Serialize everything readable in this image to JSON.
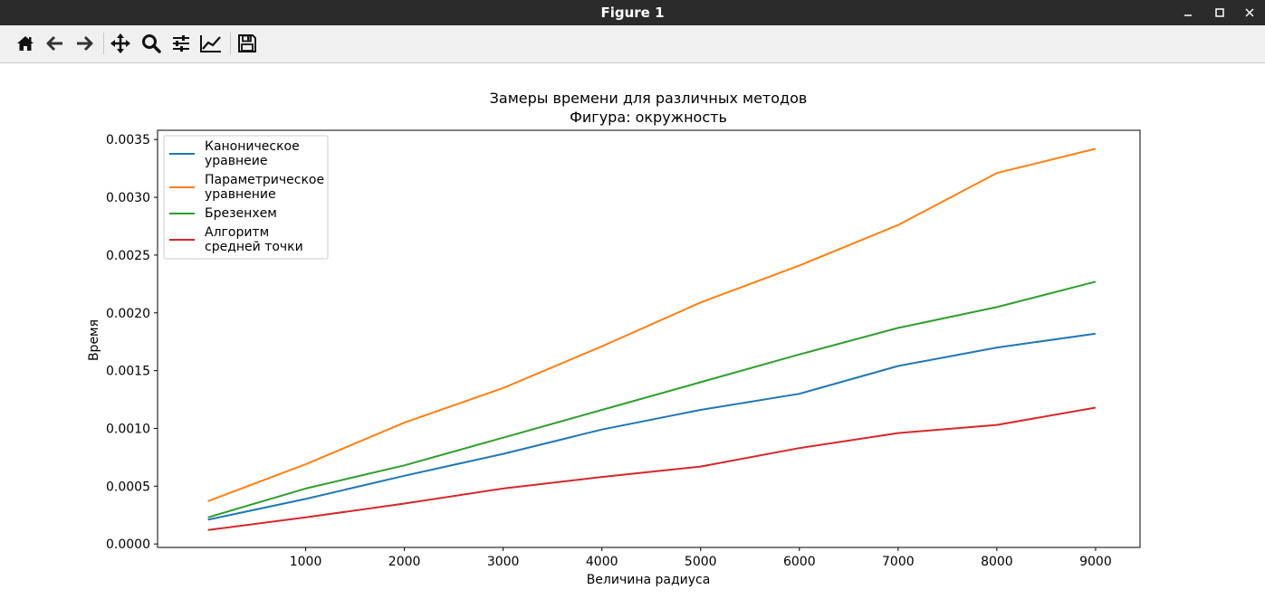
{
  "window": {
    "title": "Figure 1"
  },
  "toolbar": {
    "buttons": [
      "home-icon",
      "back-icon",
      "forward-icon",
      "pan-icon",
      "zoom-icon",
      "configure-subplots-icon",
      "edit-axis-icon",
      "save-icon"
    ]
  },
  "chart_data": {
    "type": "line",
    "title": "Замеры времени для различных методов",
    "subtitle": "Фигура: окружность",
    "xlabel": "Величина радиуса",
    "ylabel": "Время",
    "x": [
      10,
      1000,
      2000,
      3000,
      4000,
      5000,
      6000,
      7000,
      8000,
      9000
    ],
    "xlim": [
      -500,
      9450
    ],
    "ylim": [
      -3e-05,
      0.00358
    ],
    "xticks": [
      1000,
      2000,
      3000,
      4000,
      5000,
      6000,
      7000,
      8000,
      9000
    ],
    "xtick_labels": [
      "1000",
      "2000",
      "3000",
      "4000",
      "5000",
      "6000",
      "7000",
      "8000",
      "9000"
    ],
    "yticks": [
      0.0,
      0.0005,
      0.001,
      0.0015,
      0.002,
      0.0025,
      0.003,
      0.0035
    ],
    "ytick_labels": [
      "0.0000",
      "0.0005",
      "0.0010",
      "0.0015",
      "0.0020",
      "0.0025",
      "0.0030",
      "0.0035"
    ],
    "grid": false,
    "legend_position": "top-left",
    "series": [
      {
        "name": "Каноническое\nуравнеие",
        "legend_lines": [
          "Каноническое",
          "уравнеие"
        ],
        "color": "#1f77b4",
        "values": [
          0.00021,
          0.00039,
          0.00059,
          0.00078,
          0.00099,
          0.00116,
          0.0013,
          0.00154,
          0.0017,
          0.00182
        ]
      },
      {
        "name": "Параметрическое\nуравнение",
        "legend_lines": [
          "Параметрическое",
          "уравнение"
        ],
        "color": "#ff7f0e",
        "values": [
          0.00037,
          0.00069,
          0.00105,
          0.00135,
          0.00171,
          0.00209,
          0.00241,
          0.00276,
          0.00321,
          0.00342
        ]
      },
      {
        "name": "Брезенхем",
        "legend_lines": [
          "Брезенхем"
        ],
        "color": "#2ca02c",
        "values": [
          0.00023,
          0.00048,
          0.00068,
          0.00092,
          0.00116,
          0.0014,
          0.00164,
          0.00187,
          0.00205,
          0.00227
        ]
      },
      {
        "name": "Алгоритм\nсредней точки",
        "legend_lines": [
          "Алгоритм",
          "средней точки"
        ],
        "color": "#d62728",
        "values": [
          0.00012,
          0.00023,
          0.00035,
          0.00048,
          0.00058,
          0.00067,
          0.00083,
          0.00096,
          0.00103,
          0.00118
        ]
      }
    ]
  }
}
